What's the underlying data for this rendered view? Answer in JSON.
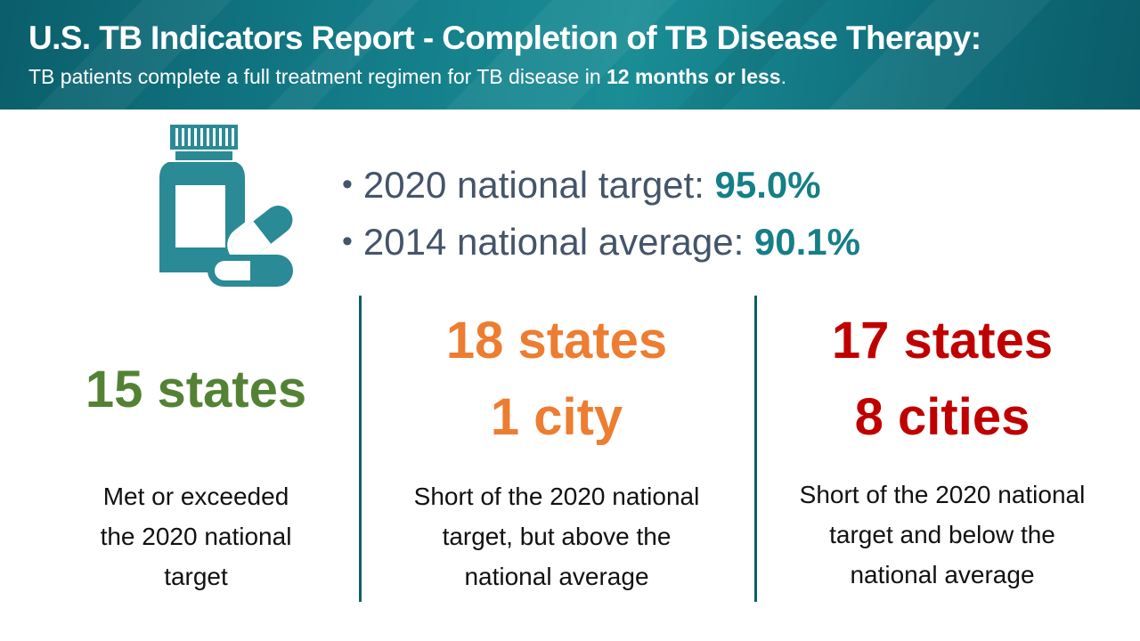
{
  "header": {
    "title": "U.S. TB Indicators Report - Completion of TB Disease Therapy:",
    "subtitle_start": "TB patients complete a full treatment regimen for TB disease in ",
    "subtitle_bold": "12 months or less",
    "subtitle_end": "."
  },
  "icon": "medicine-bottle-and-capsule-icon",
  "stats": [
    {
      "label": "2020 national target: ",
      "value": "95.0%"
    },
    {
      "label": "2014 national average: ",
      "value": "90.1%"
    }
  ],
  "bullet": "•",
  "columns": [
    {
      "lines": [
        "15 states"
      ],
      "desc": [
        "Met or exceeded",
        "the 2020 national",
        "target"
      ],
      "color": "#548235"
    },
    {
      "lines": [
        "18 states",
        "1 city"
      ],
      "desc": [
        "Short of the 2020 national",
        "target, but above the",
        "national average"
      ],
      "color": "#ed7d31"
    },
    {
      "lines": [
        "17 states",
        "8 cities"
      ],
      "desc": [
        "Short of the 2020 national",
        "target and below the",
        "national average"
      ],
      "color": "#c00000"
    }
  ],
  "colors": {
    "banner": "#127a86",
    "accent_teal": "#157f86",
    "stat_text": "#44546a",
    "divider": "#0d5f68"
  }
}
